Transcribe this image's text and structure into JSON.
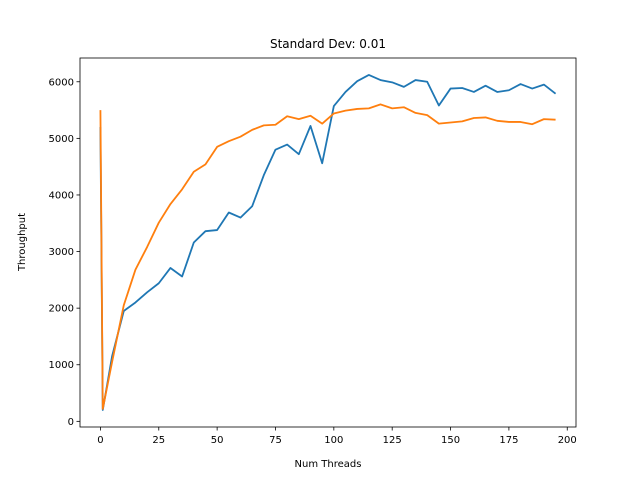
{
  "chart_data": {
    "type": "line",
    "title": "Standard Dev: 0.01",
    "xlabel": "Num Threads",
    "ylabel": "Throughput",
    "xlim": [
      -8.75,
      203.75
    ],
    "ylim": [
      -100,
      6420
    ],
    "xticks": [
      0,
      25,
      50,
      75,
      100,
      125,
      150,
      175,
      200
    ],
    "yticks": [
      0,
      1000,
      2000,
      3000,
      4000,
      5000,
      6000
    ],
    "grid": false,
    "legend": "none",
    "x": [
      0,
      1,
      5,
      10,
      15,
      20,
      25,
      30,
      35,
      40,
      45,
      50,
      55,
      60,
      65,
      70,
      75,
      80,
      85,
      90,
      95,
      100,
      105,
      110,
      115,
      120,
      125,
      130,
      135,
      140,
      145,
      150,
      155,
      160,
      165,
      170,
      175,
      180,
      185,
      190,
      195
    ],
    "series": [
      {
        "color": "#1f77b4",
        "values": [
          5200,
          200,
          1150,
          1950,
          2100,
          2280,
          2440,
          2710,
          2560,
          3160,
          3360,
          3380,
          3690,
          3600,
          3800,
          4350,
          4800,
          4890,
          4720,
          5220,
          4560,
          5570,
          5820,
          6010,
          6120,
          6030,
          5990,
          5910,
          6030,
          6000,
          5580,
          5880,
          5890,
          5820,
          5930,
          5820,
          5850,
          5960,
          5880,
          5950,
          5790
        ]
      },
      {
        "color": "#ff7f0e",
        "values": [
          5500,
          220,
          1050,
          2050,
          2680,
          3080,
          3510,
          3840,
          4100,
          4410,
          4540,
          4850,
          4950,
          5030,
          5150,
          5230,
          5240,
          5390,
          5340,
          5400,
          5260,
          5440,
          5490,
          5520,
          5530,
          5600,
          5530,
          5550,
          5450,
          5410,
          5260,
          5280,
          5300,
          5360,
          5370,
          5310,
          5290,
          5290,
          5250,
          5340,
          5330
        ]
      }
    ]
  }
}
